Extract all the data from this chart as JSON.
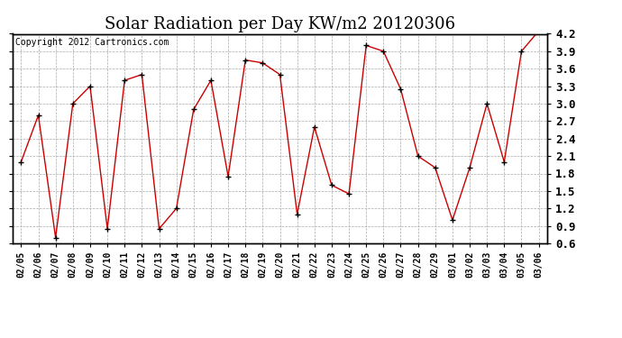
{
  "title": "Solar Radiation per Day KW/m2 20120306",
  "copyright": "Copyright 2012 Cartronics.com",
  "dates": [
    "02/05",
    "02/06",
    "02/07",
    "02/08",
    "02/09",
    "02/10",
    "02/11",
    "02/12",
    "02/13",
    "02/14",
    "02/15",
    "02/16",
    "02/17",
    "02/18",
    "02/19",
    "02/20",
    "02/21",
    "02/22",
    "02/23",
    "02/24",
    "02/25",
    "02/26",
    "02/27",
    "02/28",
    "02/29",
    "03/01",
    "03/02",
    "03/03",
    "03/04",
    "03/05",
    "03/06"
  ],
  "values": [
    2.0,
    2.8,
    0.7,
    3.0,
    3.3,
    0.85,
    3.4,
    3.5,
    0.85,
    1.2,
    2.9,
    3.4,
    1.75,
    3.75,
    3.7,
    3.5,
    1.1,
    2.6,
    1.6,
    1.45,
    4.0,
    3.9,
    3.25,
    2.1,
    1.9,
    1.0,
    1.9,
    3.0,
    2.0,
    3.9,
    4.25
  ],
  "line_color": "#cc0000",
  "marker_color": "#000000",
  "bg_color": "#ffffff",
  "grid_color": "#aaaaaa",
  "ylim": [
    0.6,
    4.2
  ],
  "yticks": [
    0.6,
    0.9,
    1.2,
    1.5,
    1.8,
    2.1,
    2.4,
    2.7,
    3.0,
    3.3,
    3.6,
    3.9,
    4.2
  ],
  "title_fontsize": 13,
  "copyright_fontsize": 7,
  "tick_fontsize": 9,
  "xtick_fontsize": 7
}
